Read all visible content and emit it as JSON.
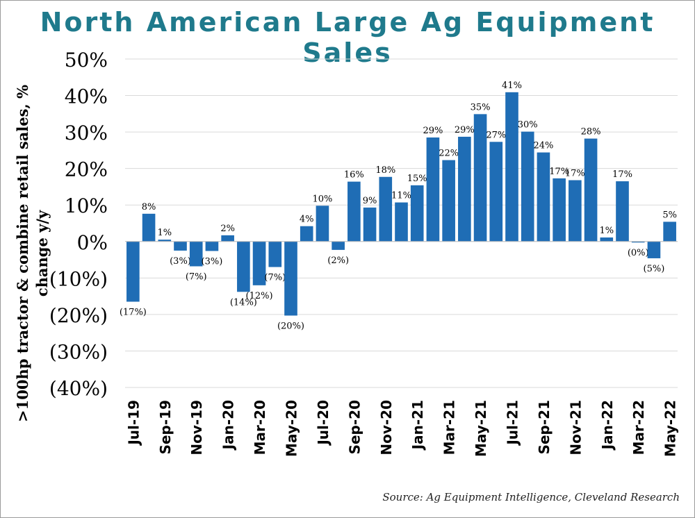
{
  "page": {
    "title": "North American Large Ag Equipment Sales",
    "source": "Source: Ag Equipment Intelligence, Cleveland Research"
  },
  "chart_data": {
    "type": "bar",
    "title": "North American Large Ag Equipment Sales",
    "ylabel_line1": ">100hp tractor & combine retail sales, %",
    "ylabel_line2": "change y/y",
    "xlabel": "",
    "ylim": [
      -40,
      50
    ],
    "yticks": [
      50,
      40,
      30,
      20,
      10,
      0,
      -10,
      -20,
      -30,
      -40
    ],
    "ytick_labels": [
      "50%",
      "40%",
      "30%",
      "20%",
      "10%",
      "0%",
      "(10%)",
      "(20%)",
      "(30%)",
      "(40%)"
    ],
    "grid": true,
    "bar_color": "#1f6db5",
    "categories": [
      "Jul-19",
      "Aug-19",
      "Sep-19",
      "Oct-19",
      "Nov-19",
      "Dec-19",
      "Jan-20",
      "Feb-20",
      "Mar-20",
      "Apr-20",
      "May-20",
      "Jun-20",
      "Jul-20",
      "Aug-20",
      "Sep-20",
      "Oct-20",
      "Nov-20",
      "Dec-20",
      "Jan-21",
      "Feb-21",
      "Mar-21",
      "Apr-21",
      "May-21",
      "Jun-21",
      "Jul-21",
      "Aug-21",
      "Sep-21",
      "Oct-21",
      "Nov-21",
      "Dec-21",
      "Jan-22",
      "Feb-22",
      "Mar-22",
      "Apr-22",
      "May-22"
    ],
    "visible_tick_labels": [
      "Jul-19",
      "Sep-19",
      "Nov-19",
      "Jan-20",
      "Mar-20",
      "May-20",
      "Jul-20",
      "Sep-20",
      "Nov-20",
      "Jan-21",
      "Mar-21",
      "May-21",
      "Jul-21",
      "Sep-21",
      "Nov-21",
      "Jan-22",
      "Mar-22",
      "May-22"
    ],
    "values": [
      -16.5,
      7.6,
      0.5,
      -2.5,
      -6.8,
      -2.6,
      1.7,
      -13.8,
      -12.0,
      -7.0,
      -20.3,
      4.2,
      9.8,
      -2.3,
      16.4,
      9.3,
      17.7,
      10.7,
      15.4,
      28.5,
      22.3,
      28.7,
      34.9,
      27.3,
      40.9,
      30.1,
      24.4,
      17.3,
      16.8,
      28.2,
      1.1,
      16.5,
      -0.2,
      -4.6,
      5.4
    ],
    "data_labels": [
      "(17%)",
      "8%",
      "1%",
      "(3%)",
      "(7%)",
      "(3%)",
      "2%",
      "(14%)",
      "(12%)",
      "(7%)",
      "(20%)",
      "4%",
      "10%",
      "(2%)",
      "16%",
      "9%",
      "18%",
      "11%",
      "15%",
      "29%",
      "22%",
      "29%",
      "35%",
      "27%",
      "41%",
      "30%",
      "24%",
      "17%",
      "17%",
      "28%",
      "1%",
      "17%",
      "(0%)",
      "(5%)",
      "5%"
    ]
  }
}
